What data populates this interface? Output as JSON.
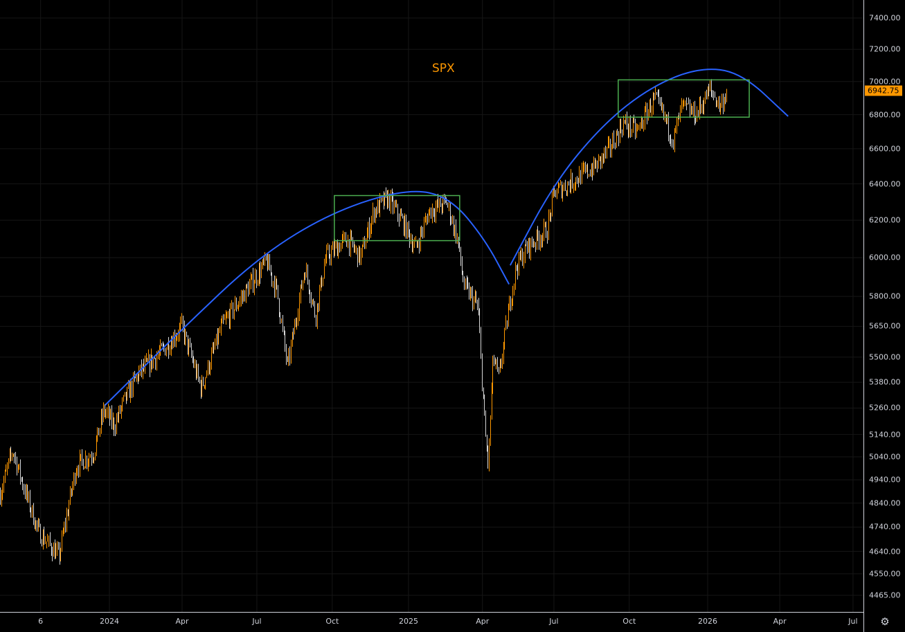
{
  "chart_data": {
    "type": "ohlc",
    "title": "SPX",
    "last_price": "6942.75",
    "y_scale": "log",
    "ylim": [
      4465,
      7400
    ],
    "y_ticks": [
      "7400.00",
      "7200.00",
      "7000.00",
      "6800.00",
      "6600.00",
      "6400.00",
      "6200.00",
      "6000.00",
      "5800.00",
      "5650.00",
      "5500.00",
      "5380.00",
      "5260.00",
      "5140.00",
      "5040.00",
      "4940.00",
      "4840.00",
      "4740.00",
      "4640.00",
      "4550.00",
      "4465.00"
    ],
    "x_ticks": [
      {
        "label": "6",
        "t": 2023.77
      },
      {
        "label": "2024",
        "t": 2024.0
      },
      {
        "label": "Apr",
        "t": 2024.243
      },
      {
        "label": "Jul",
        "t": 2024.493
      },
      {
        "label": "Oct",
        "t": 2024.745
      },
      {
        "label": "2025",
        "t": 2025.0
      },
      {
        "label": "Apr",
        "t": 2025.247
      },
      {
        "label": "Jul",
        "t": 2025.486
      },
      {
        "label": "Oct",
        "t": 2025.738
      },
      {
        "label": "2026",
        "t": 2026.0
      },
      {
        "label": "Apr",
        "t": 2026.241
      },
      {
        "label": "Jul",
        "t": 2026.486
      }
    ],
    "price_path": [
      [
        2023.634,
        4880
      ],
      [
        2023.676,
        5070
      ],
      [
        2023.715,
        4900
      ],
      [
        2023.762,
        4720
      ],
      [
        2023.831,
        4620
      ],
      [
        2023.866,
        4850
      ],
      [
        2023.889,
        5000
      ],
      [
        2023.947,
        5060
      ],
      [
        2023.981,
        5250
      ],
      [
        2024.016,
        5180
      ],
      [
        2024.051,
        5300
      ],
      [
        2024.097,
        5420
      ],
      [
        2024.19,
        5550
      ],
      [
        2024.241,
        5650
      ],
      [
        2024.306,
        5350
      ],
      [
        2024.375,
        5650
      ],
      [
        2024.444,
        5800
      ],
      [
        2024.525,
        5980
      ],
      [
        2024.56,
        5820
      ],
      [
        2024.595,
        5450
      ],
      [
        2024.653,
        5950
      ],
      [
        2024.688,
        5700
      ],
      [
        2024.722,
        6000
      ],
      [
        2024.792,
        6100
      ],
      [
        2024.838,
        6000
      ],
      [
        2024.884,
        6250
      ],
      [
        2024.931,
        6320
      ],
      [
        2024.977,
        6200
      ],
      [
        2025.023,
        6050
      ],
      [
        2025.069,
        6250
      ],
      [
        2025.127,
        6300
      ],
      [
        2025.162,
        6100
      ],
      [
        2025.185,
        5850
      ],
      [
        2025.231,
        5750
      ],
      [
        2025.255,
        5150
      ],
      [
        2025.266,
        5000
      ],
      [
        2025.282,
        5500
      ],
      [
        2025.301,
        5400
      ],
      [
        2025.336,
        5750
      ],
      [
        2025.359,
        5950
      ],
      [
        2025.394,
        6050
      ],
      [
        2025.463,
        6150
      ],
      [
        2025.486,
        6350
      ],
      [
        2025.579,
        6450
      ],
      [
        2025.625,
        6500
      ],
      [
        2025.671,
        6600
      ],
      [
        2025.718,
        6750
      ],
      [
        2025.764,
        6700
      ],
      [
        2025.822,
        6900
      ],
      [
        2025.856,
        6780
      ],
      [
        2025.884,
        6650
      ],
      [
        2025.914,
        6850
      ],
      [
        2025.961,
        6800
      ],
      [
        2026.007,
        6950
      ],
      [
        2026.042,
        6850
      ],
      [
        2026.065,
        6942.75
      ]
    ],
    "annotations": {
      "arcs": [
        {
          "color": "#2962ff",
          "points": [
            [
              2023.986,
              5274
            ],
            [
              2024.236,
              5626
            ],
            [
              2024.5,
              6006
            ],
            [
              2024.75,
              6250
            ],
            [
              2025.0,
              6375
            ],
            [
              2025.139,
              6325
            ],
            [
              2025.255,
              6098
            ],
            [
              2025.336,
              5862
            ]
          ]
        },
        {
          "color": "#2962ff",
          "points": [
            [
              2025.34,
              5960
            ],
            [
              2025.486,
              6402
            ],
            [
              2025.648,
              6740
            ],
            [
              2025.81,
              6968
            ],
            [
              2025.972,
              7087
            ],
            [
              2026.111,
              7057
            ],
            [
              2026.269,
              6790
            ]
          ]
        }
      ],
      "boxes": [
        {
          "color": "#4caf50",
          "t0": 2024.752,
          "t1": 2025.171,
          "p0": 6090,
          "p1": 6335
        },
        {
          "color": "#4caf50",
          "t0": 2025.701,
          "t1": 2026.139,
          "p0": 6785,
          "p1": 7010
        }
      ]
    },
    "colors": {
      "up": "#ff9800",
      "down": "#d8d8d8",
      "grid": "#161616",
      "tag": "#ff9800"
    }
  },
  "settings_icon": "gear-icon"
}
